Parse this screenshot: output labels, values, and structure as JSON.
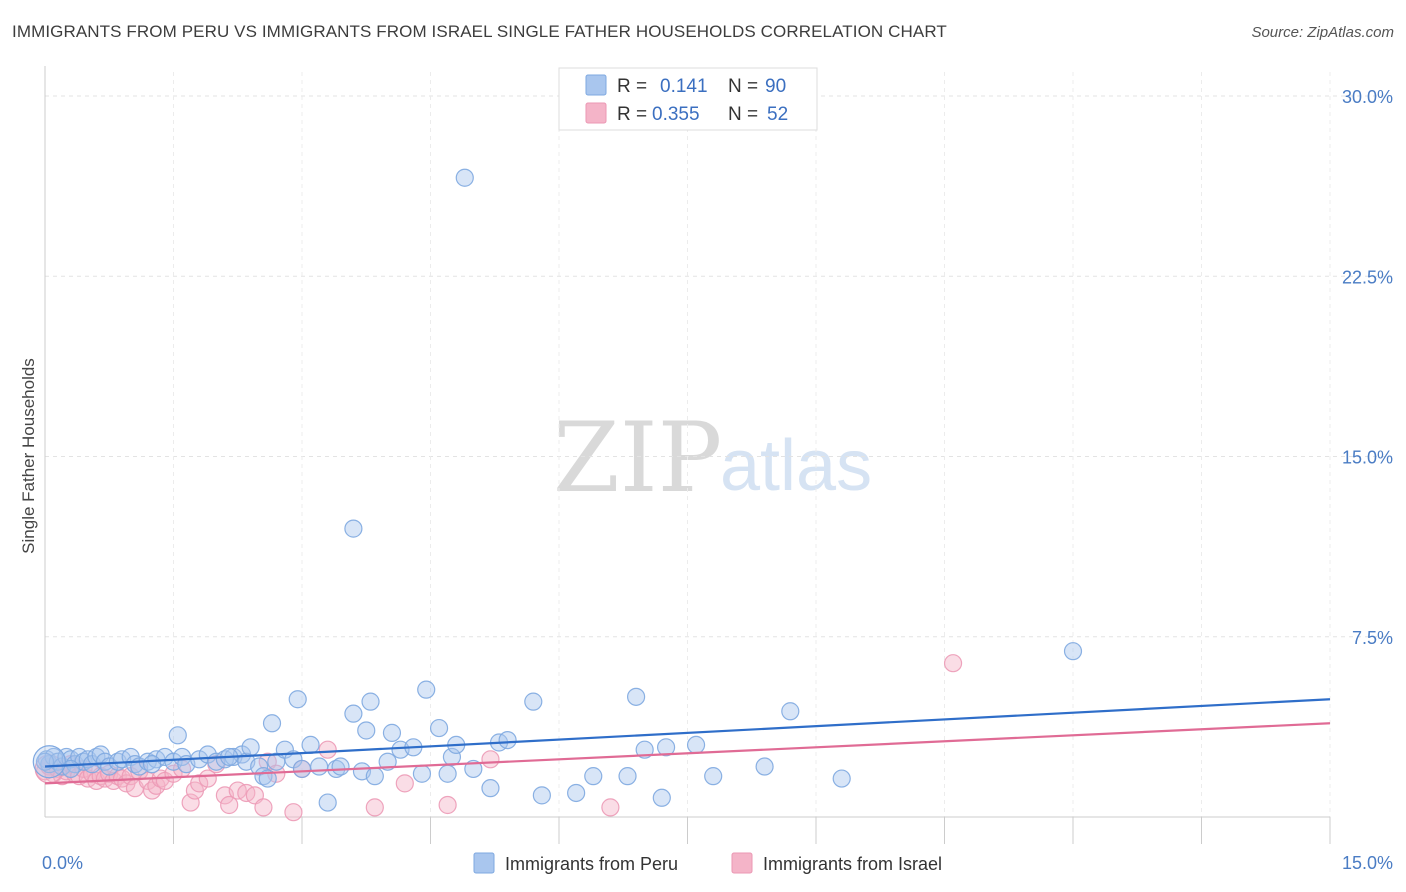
{
  "header": {
    "title": "IMMIGRANTS FROM PERU VS IMMIGRANTS FROM ISRAEL SINGLE FATHER HOUSEHOLDS CORRELATION CHART",
    "source": "Source: ZipAtlas.com"
  },
  "watermark": {
    "zip": "ZIP",
    "atlas": "atlas"
  },
  "legend": {
    "r_label": "R =",
    "n_label": "N =",
    "series": [
      {
        "r": "0.141",
        "n": "90"
      },
      {
        "r": "0.355",
        "n": "52"
      }
    ]
  },
  "chart_data": {
    "type": "scatter",
    "title": "IMMIGRANTS FROM PERU VS IMMIGRANTS FROM ISRAEL SINGLE FATHER HOUSEHOLDS CORRELATION CHART",
    "xlabel": "",
    "ylabel": "Single Father Households",
    "xlim": [
      0,
      15
    ],
    "ylim": [
      0,
      31
    ],
    "x_tick_labels": [
      "0.0%",
      "15.0%"
    ],
    "y_ticks": [
      7.5,
      15.0,
      22.5,
      30.0
    ],
    "y_tick_labels": [
      "7.5%",
      "15.0%",
      "22.5%",
      "30.0%"
    ],
    "grid": true,
    "legend_position": "top-center",
    "colors": {
      "peru": "#a9c6ee",
      "peru_line": "#2f6ec9",
      "israel": "#f4b4c8",
      "israel_line": "#e06b95"
    },
    "series": [
      {
        "name": "Immigrants from Peru",
        "r": 0.141,
        "n": 90,
        "trend": {
          "x": [
            0,
            15
          ],
          "y": [
            2.1,
            4.9
          ]
        },
        "points": [
          [
            0.02,
            2.4
          ],
          [
            0.05,
            2.2
          ],
          [
            0.1,
            2.5
          ],
          [
            0.15,
            2.3
          ],
          [
            0.2,
            2.1
          ],
          [
            0.25,
            2.5
          ],
          [
            0.3,
            2.4
          ],
          [
            0.35,
            2.2
          ],
          [
            0.4,
            2.5
          ],
          [
            0.45,
            2.3
          ],
          [
            0.5,
            2.4
          ],
          [
            0.55,
            2.2
          ],
          [
            0.6,
            2.5
          ],
          [
            0.65,
            2.6
          ],
          [
            0.7,
            2.3
          ],
          [
            0.75,
            2.1
          ],
          [
            0.85,
            2.3
          ],
          [
            0.9,
            2.4
          ],
          [
            1.0,
            2.5
          ],
          [
            1.05,
            2.2
          ],
          [
            1.1,
            2.1
          ],
          [
            1.2,
            2.3
          ],
          [
            1.3,
            2.4
          ],
          [
            1.4,
            2.5
          ],
          [
            1.5,
            2.3
          ],
          [
            1.55,
            3.4
          ],
          [
            1.6,
            2.5
          ],
          [
            1.65,
            2.2
          ],
          [
            1.8,
            2.4
          ],
          [
            1.9,
            2.6
          ],
          [
            2.0,
            2.3
          ],
          [
            2.1,
            2.4
          ],
          [
            2.2,
            2.5
          ],
          [
            2.3,
            2.6
          ],
          [
            2.35,
            2.3
          ],
          [
            2.4,
            2.9
          ],
          [
            2.5,
            2.1
          ],
          [
            2.55,
            1.7
          ],
          [
            2.6,
            1.6
          ],
          [
            2.65,
            3.9
          ],
          [
            2.7,
            2.3
          ],
          [
            2.8,
            2.8
          ],
          [
            2.9,
            2.4
          ],
          [
            2.95,
            4.9
          ],
          [
            3.0,
            2.0
          ],
          [
            3.1,
            3.0
          ],
          [
            3.2,
            2.1
          ],
          [
            3.3,
            0.6
          ],
          [
            3.4,
            2.0
          ],
          [
            3.45,
            2.1
          ],
          [
            3.6,
            4.3
          ],
          [
            3.7,
            1.9
          ],
          [
            3.75,
            3.6
          ],
          [
            3.8,
            4.8
          ],
          [
            3.85,
            1.7
          ],
          [
            4.0,
            2.3
          ],
          [
            4.05,
            3.5
          ],
          [
            4.15,
            2.8
          ],
          [
            4.3,
            2.9
          ],
          [
            4.4,
            1.8
          ],
          [
            4.45,
            5.3
          ],
          [
            4.6,
            3.7
          ],
          [
            4.7,
            1.8
          ],
          [
            4.75,
            2.5
          ],
          [
            4.8,
            3.0
          ],
          [
            5.0,
            2.0
          ],
          [
            5.2,
            1.2
          ],
          [
            5.3,
            3.1
          ],
          [
            5.4,
            3.2
          ],
          [
            5.7,
            4.8
          ],
          [
            5.8,
            0.9
          ],
          [
            6.2,
            1.0
          ],
          [
            6.4,
            1.7
          ],
          [
            6.8,
            1.7
          ],
          [
            6.9,
            5.0
          ],
          [
            7.0,
            2.8
          ],
          [
            7.2,
            0.8
          ],
          [
            7.25,
            2.9
          ],
          [
            7.6,
            3.0
          ],
          [
            7.8,
            1.7
          ],
          [
            8.4,
            2.1
          ],
          [
            8.7,
            4.4
          ],
          [
            9.3,
            1.6
          ],
          [
            12.0,
            6.9
          ],
          [
            4.9,
            26.6
          ],
          [
            3.6,
            12.0
          ],
          [
            0.0,
            2.3
          ],
          [
            0.3,
            2.0
          ],
          [
            1.25,
            2.2
          ],
          [
            2.15,
            2.5
          ]
        ]
      },
      {
        "name": "Immigrants from Israel",
        "r": 0.355,
        "n": 52,
        "trend": {
          "x": [
            0,
            15
          ],
          "y": [
            1.4,
            3.9
          ]
        },
        "points": [
          [
            0.0,
            1.9
          ],
          [
            0.05,
            2.1
          ],
          [
            0.1,
            1.8
          ],
          [
            0.15,
            2.0
          ],
          [
            0.2,
            1.7
          ],
          [
            0.25,
            1.9
          ],
          [
            0.3,
            2.2
          ],
          [
            0.35,
            1.8
          ],
          [
            0.4,
            1.7
          ],
          [
            0.45,
            2.0
          ],
          [
            0.5,
            1.6
          ],
          [
            0.55,
            1.8
          ],
          [
            0.6,
            1.5
          ],
          [
            0.65,
            1.7
          ],
          [
            0.7,
            1.6
          ],
          [
            0.75,
            1.8
          ],
          [
            0.8,
            1.5
          ],
          [
            0.85,
            1.7
          ],
          [
            0.9,
            1.6
          ],
          [
            0.95,
            1.4
          ],
          [
            1.0,
            1.7
          ],
          [
            1.05,
            1.2
          ],
          [
            1.1,
            1.9
          ],
          [
            1.2,
            1.5
          ],
          [
            1.25,
            1.1
          ],
          [
            1.3,
            1.3
          ],
          [
            1.35,
            1.6
          ],
          [
            1.4,
            1.5
          ],
          [
            1.5,
            1.8
          ],
          [
            1.6,
            2.0
          ],
          [
            1.7,
            0.6
          ],
          [
            1.75,
            1.1
          ],
          [
            1.8,
            1.4
          ],
          [
            1.9,
            1.6
          ],
          [
            2.0,
            2.2
          ],
          [
            2.1,
            0.9
          ],
          [
            2.15,
            0.5
          ],
          [
            2.25,
            1.1
          ],
          [
            2.35,
            1.0
          ],
          [
            2.45,
            0.9
          ],
          [
            2.55,
            0.4
          ],
          [
            2.6,
            2.3
          ],
          [
            2.7,
            1.8
          ],
          [
            2.9,
            0.2
          ],
          [
            3.0,
            2.0
          ],
          [
            3.3,
            2.8
          ],
          [
            3.85,
            0.4
          ],
          [
            4.2,
            1.4
          ],
          [
            4.7,
            0.5
          ],
          [
            5.2,
            2.4
          ],
          [
            6.6,
            0.4
          ],
          [
            10.6,
            6.4
          ]
        ]
      }
    ]
  },
  "bottom_legend": {
    "items": [
      {
        "label": "Immigrants from Peru"
      },
      {
        "label": "Immigrants from Israel"
      }
    ]
  }
}
